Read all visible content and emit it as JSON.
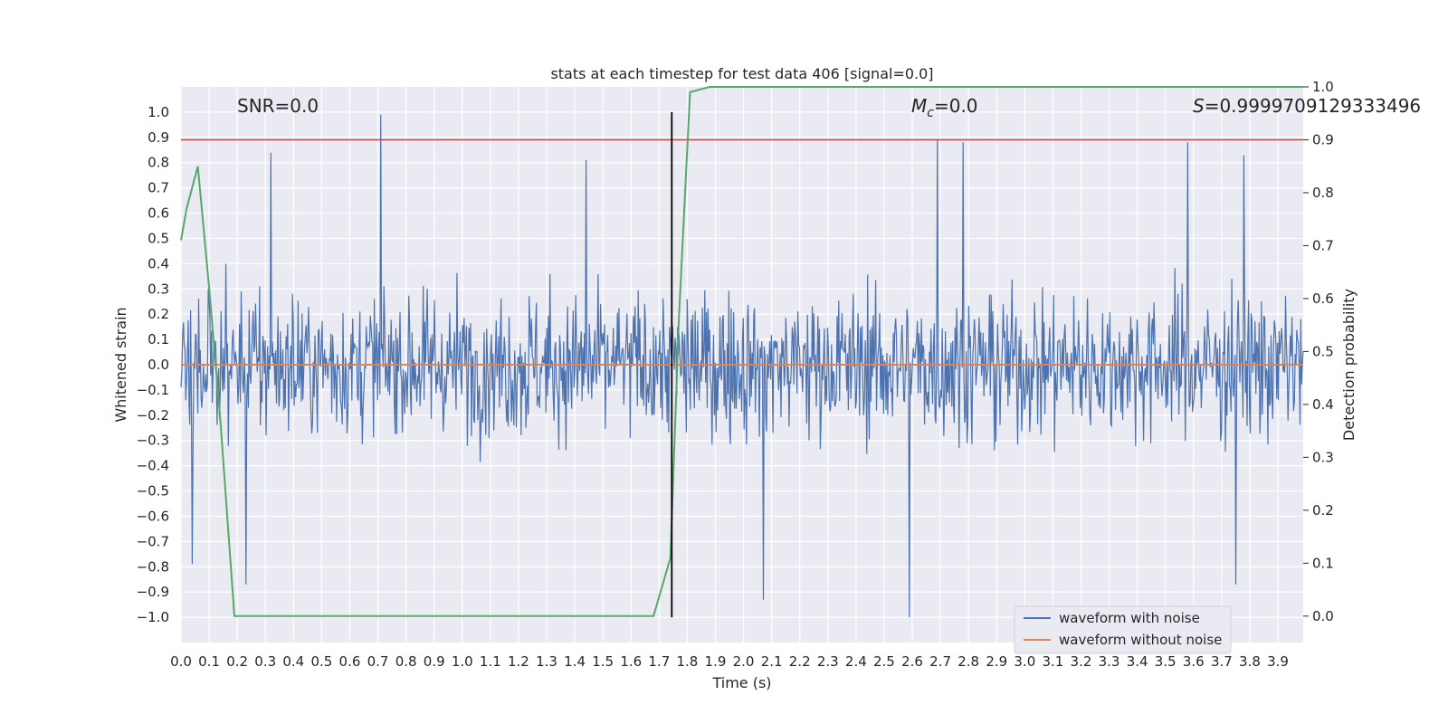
{
  "chart_data": {
    "type": "line",
    "title": "stats at each timestep for test data 406 [signal=0.0]",
    "xlabel": "Time (s)",
    "ylabel": "Whitened strain",
    "ylabel_right": "Detection probability",
    "xlim": [
      0.0,
      3.99
    ],
    "ylim": [
      -1.1,
      1.1
    ],
    "ylim_right": [
      -0.05,
      1.0
    ],
    "grid": true,
    "legend_position": "lower right",
    "x_ticks": [
      "0.0",
      "0.1",
      "0.2",
      "0.3",
      "0.4",
      "0.5",
      "0.6",
      "0.7",
      "0.8",
      "0.9",
      "1.0",
      "1.1",
      "1.2",
      "1.3",
      "1.4",
      "1.5",
      "1.6",
      "1.7",
      "1.8",
      "1.9",
      "2.0",
      "2.1",
      "2.2",
      "2.3",
      "2.4",
      "2.5",
      "2.6",
      "2.7",
      "2.8",
      "2.9",
      "3.0",
      "3.1",
      "3.2",
      "3.3",
      "3.4",
      "3.5",
      "3.6",
      "3.7",
      "3.8",
      "3.9"
    ],
    "y_ticks": [
      "−1.0",
      "−0.9",
      "−0.8",
      "−0.7",
      "−0.6",
      "−0.5",
      "−0.4",
      "−0.3",
      "−0.2",
      "−0.1",
      "0.0",
      "0.1",
      "0.2",
      "0.3",
      "0.4",
      "0.5",
      "0.6",
      "0.7",
      "0.8",
      "0.9",
      "1.0"
    ],
    "y_ticks_right": [
      "0.0",
      "0.1",
      "0.2",
      "0.3",
      "0.4",
      "0.5",
      "0.6",
      "0.7",
      "0.8",
      "0.9",
      "1.0"
    ],
    "annotations": {
      "snr": "SNR=0.0",
      "mc_symbol": "M",
      "mc_subscript": "c",
      "mc_value": "=0.0",
      "s_symbol": "S",
      "s_value": "=0.9999709129333496"
    },
    "series": [
      {
        "name": "waveform with noise",
        "color": "#4c72b0",
        "axis": "left",
        "description": "dense noise, amplitude envelope mostly within ±0.5, peaks near 0.99 and −1.0",
        "peaks": [
          {
            "x": 0.32,
            "y": 0.84
          },
          {
            "x": 0.71,
            "y": 0.99
          },
          {
            "x": 1.44,
            "y": 0.81
          },
          {
            "x": 2.69,
            "y": 0.89
          },
          {
            "x": 2.78,
            "y": 0.88
          },
          {
            "x": 3.58,
            "y": 0.88
          },
          {
            "x": 3.78,
            "y": 0.83
          },
          {
            "x": 0.04,
            "y": -0.79
          },
          {
            "x": 0.23,
            "y": -0.87
          },
          {
            "x": 2.07,
            "y": -0.93
          },
          {
            "x": 2.59,
            "y": -1.0
          },
          {
            "x": 3.75,
            "y": -0.87
          }
        ]
      },
      {
        "name": "waveform without noise",
        "color": "#dd8452",
        "axis": "left",
        "x": [
          0.0,
          3.99
        ],
        "y": [
          0.0,
          0.0
        ]
      },
      {
        "name": "",
        "color": "#55a868",
        "axis": "right",
        "x": [
          0.0,
          0.02,
          0.06,
          0.1,
          0.14,
          0.19,
          0.25,
          0.5,
          1.0,
          1.5,
          1.6,
          1.68,
          1.74,
          1.77,
          1.81,
          1.88,
          2.5,
          3.99
        ],
        "y": [
          0.71,
          0.77,
          0.85,
          0.62,
          0.37,
          0.0,
          0.0,
          0.0,
          0.0,
          0.0,
          0.0,
          0.0,
          0.11,
          0.56,
          0.99,
          1.0,
          1.0,
          1.0
        ]
      }
    ],
    "threshold_line": {
      "axis": "right",
      "value": 0.9,
      "color": "#c44e52"
    },
    "marker_line": {
      "x": 1.745,
      "color": "#000000"
    }
  }
}
